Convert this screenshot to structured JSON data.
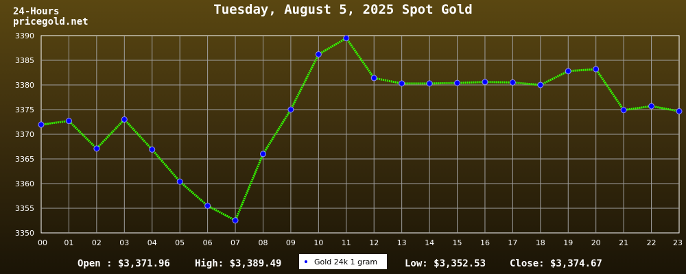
{
  "header": {
    "period": "24-Hours",
    "site": "pricegold.net"
  },
  "chart_data": {
    "type": "line",
    "title": "Tuesday, August 5, 2025 Spot Gold",
    "xlabel": "",
    "ylabel": "",
    "categories": [
      "00",
      "01",
      "02",
      "03",
      "04",
      "05",
      "06",
      "07",
      "08",
      "09",
      "10",
      "11",
      "12",
      "13",
      "14",
      "15",
      "16",
      "17",
      "18",
      "19",
      "20",
      "21",
      "22",
      "23"
    ],
    "series": [
      {
        "name": "Gold 24k 1 gram",
        "values": [
          3371.96,
          3372.7,
          3367.1,
          3373.0,
          3366.9,
          3360.4,
          3355.5,
          3352.53,
          3366.0,
          3375.0,
          3386.2,
          3389.49,
          3381.4,
          3380.3,
          3380.3,
          3380.4,
          3380.6,
          3380.5,
          3380.0,
          3382.8,
          3383.2,
          3374.9,
          3375.7,
          3374.67
        ]
      }
    ],
    "ylim": [
      3350,
      3390
    ],
    "yticks": [
      "3350",
      "3355",
      "3360",
      "3365",
      "3370",
      "3375",
      "3380",
      "3385",
      "3390"
    ],
    "grid": true,
    "legend_position": "bottom-center",
    "colors": {
      "line": "#33ff00",
      "marker": "#0000ff",
      "grid": "#a0a0a0",
      "plot_border": "#ffffff"
    }
  },
  "stats": {
    "open": "Open : $3,371.96",
    "high": "High: $3,389.49",
    "low": "Low: $3,352.53",
    "close": "Close: $3,374.67"
  }
}
